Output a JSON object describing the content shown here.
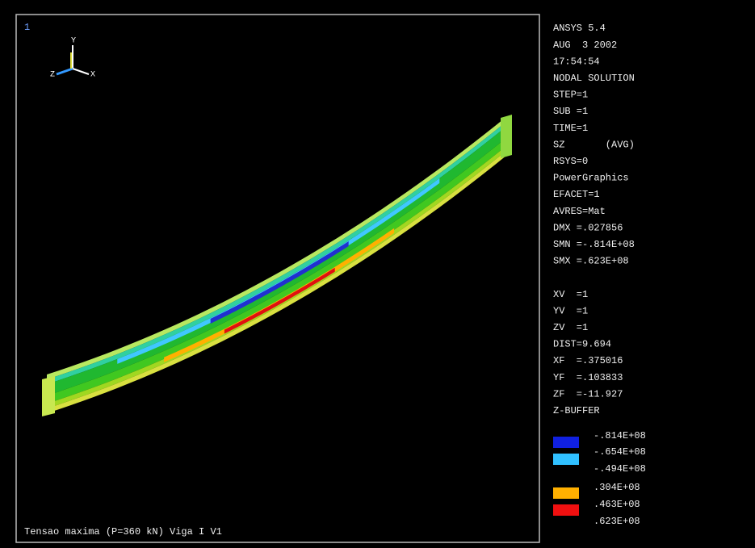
{
  "window_number": "1",
  "axes": {
    "y": "Y",
    "x": "X",
    "z": "Z"
  },
  "info_lines": [
    "ANSYS 5.4",
    "AUG  3 2002",
    "17:54:54",
    "NODAL SOLUTION",
    "STEP=1",
    "SUB =1",
    "TIME=1",
    "SZ       (AVG)",
    "RSYS=0",
    "PowerGraphics",
    "EFACET=1",
    "AVRES=Mat",
    "DMX =.027856",
    "SMN =-.814E+08",
    "SMX =.623E+08",
    "",
    "XV  =1",
    "YV  =1",
    "ZV  =1",
    "DIST=9.694",
    "XF  =.375016",
    "YF  =.103833",
    "ZF  =-11.927",
    "Z-BUFFER"
  ],
  "legend_labels": [
    "-.814E+08",
    "-.654E+08",
    "-.494E+08",
    ".304E+08",
    ".463E+08",
    ".623E+08"
  ],
  "caption": "Tensao maxima (P=360 kN) Viga I V1"
}
